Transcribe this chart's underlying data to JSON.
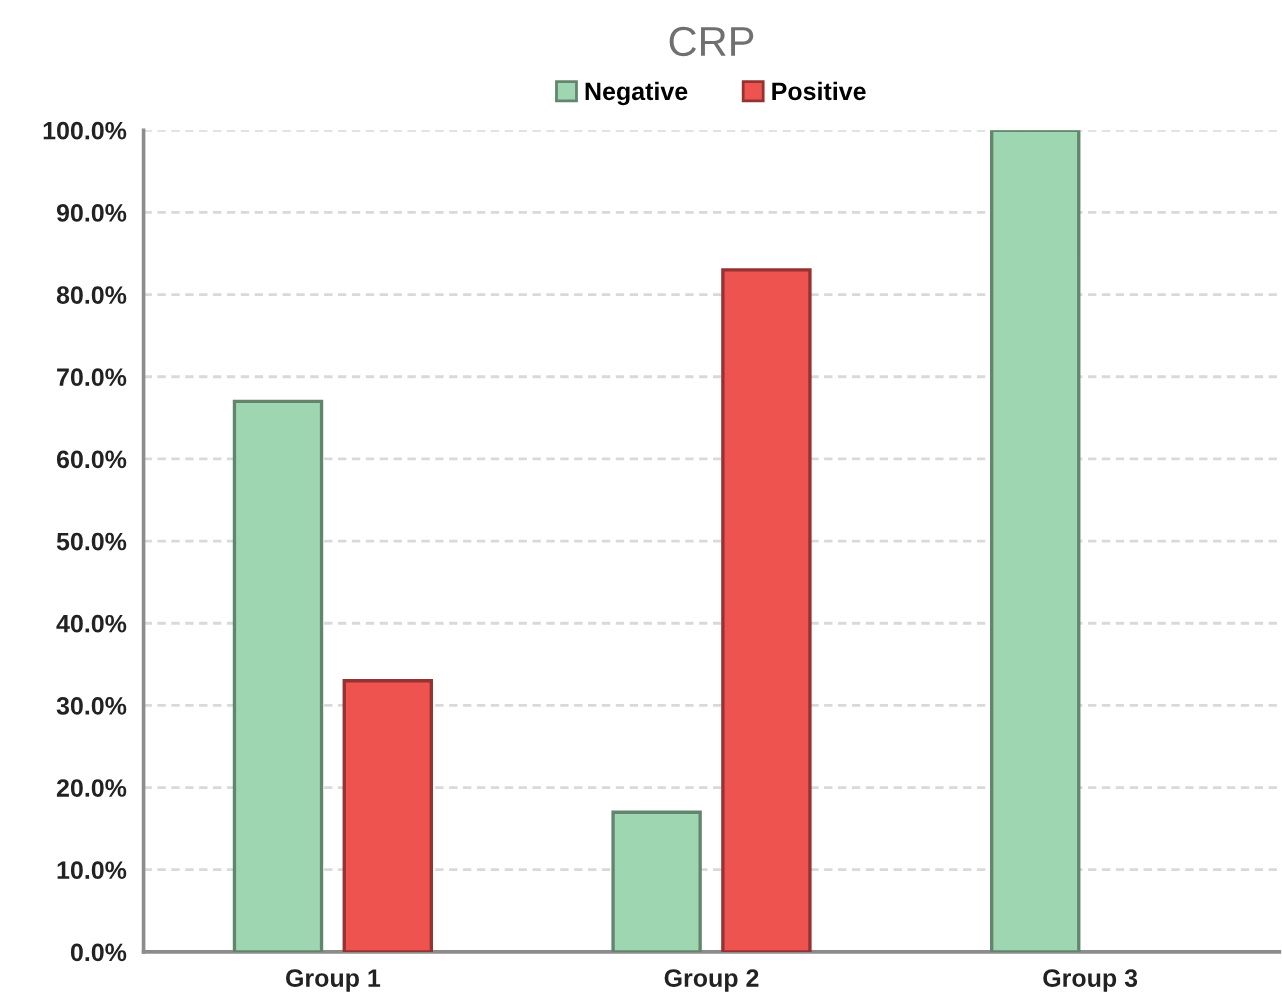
{
  "chart_data": {
    "type": "bar",
    "title": "CRP",
    "categories": [
      "Group 1",
      "Group 2",
      "Group 3"
    ],
    "series": [
      {
        "name": "Negative",
        "color": "#9fd6b2",
        "values": [
          67,
          17,
          100
        ]
      },
      {
        "name": "Positive",
        "color": "#ef5350",
        "values": [
          33,
          83,
          null
        ]
      }
    ],
    "ylim": [
      0,
      100
    ],
    "yticks": [
      {
        "value": 0,
        "label": "0.0%"
      },
      {
        "value": 10,
        "label": "10.0%"
      },
      {
        "value": 20,
        "label": "20.0%"
      },
      {
        "value": 30,
        "label": "30.0%"
      },
      {
        "value": 40,
        "label": "40.0%"
      },
      {
        "value": 50,
        "label": "50.0%"
      },
      {
        "value": 60,
        "label": "60.0%"
      },
      {
        "value": 70,
        "label": "70.0%"
      },
      {
        "value": 80,
        "label": "80.0%"
      },
      {
        "value": 90,
        "label": "90.0%"
      },
      {
        "value": 100,
        "label": "100.0%"
      }
    ],
    "grid": "y",
    "legend": "top"
  }
}
